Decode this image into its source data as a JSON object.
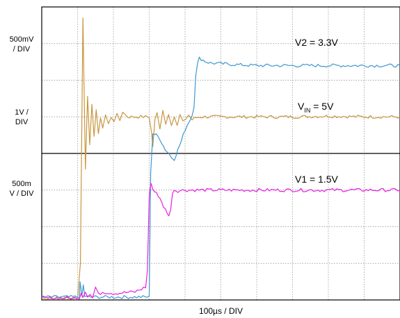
{
  "chart_data": {
    "type": "line",
    "title": "",
    "xlabel": "100µs / DIV",
    "x_divisions": 10,
    "y_divisions": 8,
    "grid": true,
    "xlim": [
      0,
      10
    ],
    "ylim": [
      0,
      8
    ],
    "scale_labels": [
      {
        "lines": [
          "500mV",
          "/ DIV"
        ]
      },
      {
        "lines": [
          "1V /",
          "DIV"
        ]
      },
      {
        "lines": [
          "500m",
          "V / DIV"
        ]
      }
    ],
    "series": [
      {
        "name": "V2 = 3.3V",
        "color": "#3d97cf",
        "units": "divisions",
        "x": [
          0,
          1.05,
          1.07,
          1.12,
          1.16,
          1.2,
          1.25,
          3.0,
          3.04,
          3.1,
          3.2,
          3.3,
          3.45,
          3.55,
          3.62,
          3.7,
          3.8,
          3.9,
          4.0,
          4.2,
          4.25,
          4.3,
          4.35,
          4.4,
          4.5,
          4.6,
          4.7,
          5.0,
          5.5,
          6.0,
          7.0,
          8.0,
          9.0,
          10.0
        ],
        "y": [
          0.08,
          0.08,
          0.45,
          0.1,
          0.4,
          0.1,
          0.08,
          0.08,
          3.5,
          4.55,
          4.5,
          4.4,
          4.1,
          4.0,
          3.9,
          3.85,
          4.1,
          4.35,
          4.65,
          5.05,
          5.3,
          6.15,
          6.45,
          6.6,
          6.55,
          6.5,
          6.47,
          6.45,
          6.42,
          6.4,
          6.4,
          6.4,
          6.4,
          6.4
        ]
      },
      {
        "name": "V_IN = 5V",
        "color": "#c8963e",
        "units": "divisions",
        "x": [
          0,
          1.0,
          1.08,
          1.15,
          1.22,
          1.28,
          1.34,
          1.4,
          1.46,
          1.52,
          1.58,
          1.64,
          1.7,
          1.78,
          1.86,
          1.94,
          2.02,
          2.1,
          2.18,
          2.26,
          2.34,
          2.4,
          2.5,
          2.7,
          2.9,
          3.0,
          3.06,
          3.1,
          3.16,
          3.22,
          3.3,
          3.38,
          3.46,
          3.54,
          3.62,
          3.7,
          3.78,
          3.86,
          3.94,
          4.02,
          4.1,
          4.2,
          4.3,
          4.5,
          5.0,
          6.0,
          7.0,
          8.0,
          9.0,
          10.0
        ],
        "y": [
          0.05,
          0.05,
          1.0,
          7.7,
          3.6,
          5.6,
          4.2,
          5.3,
          4.5,
          5.2,
          4.5,
          5.0,
          4.7,
          5.05,
          4.8,
          5.0,
          4.9,
          5.05,
          4.9,
          5.15,
          5.05,
          5.0,
          5.0,
          5.0,
          5.0,
          5.0,
          4.6,
          4.2,
          4.9,
          5.1,
          4.7,
          5.2,
          4.8,
          5.1,
          4.8,
          5.0,
          4.75,
          5.05,
          4.85,
          4.95,
          5.05,
          4.92,
          4.98,
          5.0,
          5.0,
          5.0,
          5.0,
          5.02,
          5.0,
          5.0
        ]
      },
      {
        "name": "V1 = 1.5V",
        "color": "#e81ee2",
        "units": "divisions",
        "x": [
          0,
          1.05,
          1.1,
          1.15,
          1.22,
          1.28,
          1.35,
          1.42,
          1.5,
          1.58,
          1.7,
          2.0,
          2.3,
          2.6,
          2.9,
          2.95,
          3.0,
          3.02,
          3.05,
          3.1,
          3.15,
          3.2,
          3.3,
          3.4,
          3.5,
          3.55,
          3.6,
          3.65,
          3.7,
          3.8,
          4.0,
          4.5,
          5.0,
          6.0,
          7.0,
          8.0,
          9.0,
          10.0
        ],
        "y": [
          0.05,
          0.05,
          0.22,
          0.08,
          0.25,
          0.1,
          0.15,
          0.05,
          0.35,
          0.15,
          0.22,
          0.18,
          0.2,
          0.22,
          0.35,
          0.8,
          2.8,
          3.0,
          3.15,
          3.05,
          2.95,
          2.95,
          2.75,
          2.55,
          2.4,
          2.3,
          2.45,
          2.95,
          3.0,
          2.98,
          3.0,
          3.0,
          3.0,
          3.0,
          3.0,
          3.0,
          3.0,
          3.0
        ]
      }
    ],
    "annotations": [
      {
        "text": "V2 = 3.3V",
        "series": 0
      },
      {
        "text": "V",
        "sub": "IN",
        "rest": " = 5V",
        "series": 1
      },
      {
        "text": "V1 = 1.5V",
        "series": 2
      }
    ]
  }
}
